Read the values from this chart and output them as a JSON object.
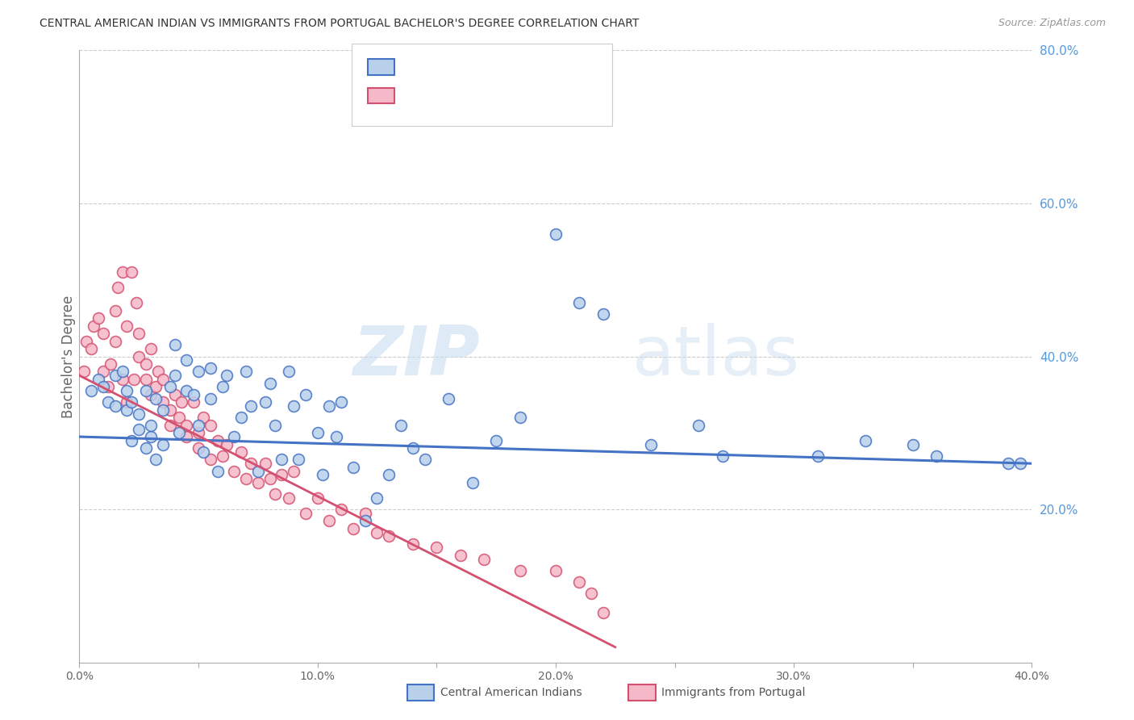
{
  "title": "CENTRAL AMERICAN INDIAN VS IMMIGRANTS FROM PORTUGAL BACHELOR'S DEGREE CORRELATION CHART",
  "source": "Source: ZipAtlas.com",
  "ylabel": "Bachelor's Degree",
  "xlim": [
    0.0,
    0.4
  ],
  "ylim": [
    0.0,
    0.8
  ],
  "xticks": [
    0.0,
    0.05,
    0.1,
    0.15,
    0.2,
    0.25,
    0.3,
    0.35,
    0.4
  ],
  "xtick_labels": [
    "0.0%",
    "",
    "10.0%",
    "",
    "20.0%",
    "",
    "30.0%",
    "",
    "40.0%"
  ],
  "yticks_right": [
    0.2,
    0.4,
    0.6,
    0.8
  ],
  "ytick_labels_right": [
    "20.0%",
    "40.0%",
    "60.0%",
    "80.0%"
  ],
  "grid_color": "#cccccc",
  "background_color": "#ffffff",
  "watermark_zip": "ZIP",
  "watermark_atlas": "atlas",
  "series1_label": "Central American Indians",
  "series2_label": "Immigrants from Portugal",
  "series1_color": "#b8d0ea",
  "series2_color": "#f5b8c8",
  "line1_color": "#4472c4",
  "line2_color": "#d45070",
  "series1_x": [
    0.005,
    0.008,
    0.01,
    0.012,
    0.015,
    0.015,
    0.018,
    0.02,
    0.02,
    0.022,
    0.022,
    0.025,
    0.025,
    0.028,
    0.028,
    0.03,
    0.03,
    0.032,
    0.032,
    0.035,
    0.035,
    0.038,
    0.04,
    0.04,
    0.042,
    0.045,
    0.045,
    0.048,
    0.05,
    0.05,
    0.052,
    0.055,
    0.055,
    0.058,
    0.06,
    0.062,
    0.065,
    0.068,
    0.07,
    0.072,
    0.075,
    0.078,
    0.08,
    0.082,
    0.085,
    0.088,
    0.09,
    0.092,
    0.095,
    0.1,
    0.102,
    0.105,
    0.108,
    0.11,
    0.115,
    0.12,
    0.125,
    0.13,
    0.135,
    0.14,
    0.145,
    0.155,
    0.165,
    0.175,
    0.185,
    0.2,
    0.21,
    0.22,
    0.24,
    0.26,
    0.27,
    0.31,
    0.33,
    0.35,
    0.36,
    0.39,
    0.395
  ],
  "series1_y": [
    0.355,
    0.37,
    0.36,
    0.34,
    0.335,
    0.375,
    0.38,
    0.33,
    0.355,
    0.34,
    0.29,
    0.305,
    0.325,
    0.28,
    0.355,
    0.295,
    0.31,
    0.265,
    0.345,
    0.33,
    0.285,
    0.36,
    0.415,
    0.375,
    0.3,
    0.355,
    0.395,
    0.35,
    0.38,
    0.31,
    0.275,
    0.385,
    0.345,
    0.25,
    0.36,
    0.375,
    0.295,
    0.32,
    0.38,
    0.335,
    0.25,
    0.34,
    0.365,
    0.31,
    0.265,
    0.38,
    0.335,
    0.265,
    0.35,
    0.3,
    0.245,
    0.335,
    0.295,
    0.34,
    0.255,
    0.185,
    0.215,
    0.245,
    0.31,
    0.28,
    0.265,
    0.345,
    0.235,
    0.29,
    0.32,
    0.56,
    0.47,
    0.455,
    0.285,
    0.31,
    0.27,
    0.27,
    0.29,
    0.285,
    0.27,
    0.26,
    0.26
  ],
  "series2_x": [
    0.002,
    0.003,
    0.005,
    0.006,
    0.008,
    0.01,
    0.01,
    0.012,
    0.013,
    0.015,
    0.015,
    0.016,
    0.018,
    0.018,
    0.02,
    0.02,
    0.022,
    0.023,
    0.024,
    0.025,
    0.025,
    0.028,
    0.028,
    0.03,
    0.03,
    0.032,
    0.033,
    0.035,
    0.035,
    0.038,
    0.038,
    0.04,
    0.042,
    0.043,
    0.045,
    0.045,
    0.048,
    0.05,
    0.05,
    0.052,
    0.055,
    0.055,
    0.058,
    0.06,
    0.062,
    0.065,
    0.068,
    0.07,
    0.072,
    0.075,
    0.078,
    0.08,
    0.082,
    0.085,
    0.088,
    0.09,
    0.095,
    0.1,
    0.105,
    0.11,
    0.115,
    0.12,
    0.125,
    0.13,
    0.14,
    0.15,
    0.16,
    0.17,
    0.185,
    0.2,
    0.21,
    0.215,
    0.22
  ],
  "series2_y": [
    0.38,
    0.42,
    0.41,
    0.44,
    0.45,
    0.38,
    0.43,
    0.36,
    0.39,
    0.42,
    0.46,
    0.49,
    0.37,
    0.51,
    0.44,
    0.34,
    0.51,
    0.37,
    0.47,
    0.4,
    0.43,
    0.39,
    0.37,
    0.41,
    0.35,
    0.36,
    0.38,
    0.34,
    0.37,
    0.33,
    0.31,
    0.35,
    0.32,
    0.34,
    0.31,
    0.295,
    0.34,
    0.3,
    0.28,
    0.32,
    0.265,
    0.31,
    0.29,
    0.27,
    0.285,
    0.25,
    0.275,
    0.24,
    0.26,
    0.235,
    0.26,
    0.24,
    0.22,
    0.245,
    0.215,
    0.25,
    0.195,
    0.215,
    0.185,
    0.2,
    0.175,
    0.195,
    0.17,
    0.165,
    0.155,
    0.15,
    0.14,
    0.135,
    0.12,
    0.12,
    0.105,
    0.09,
    0.065
  ],
  "line1_x": [
    0.0,
    0.4
  ],
  "line1_y": [
    0.295,
    0.26
  ],
  "line2_x": [
    0.0,
    0.225
  ],
  "line2_y": [
    0.375,
    0.02
  ],
  "marker_size": 100,
  "marker_linewidth": 1.2
}
